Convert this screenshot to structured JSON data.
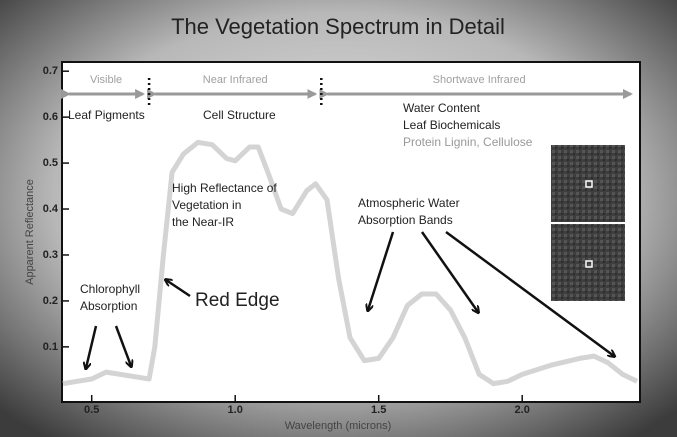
{
  "chart_data": {
    "type": "line",
    "title": "The Vegetation Spectrum in Detail",
    "x_label": "Wavelength (microns)",
    "y_label": "Apparent Reflectance",
    "x": [
      0.4,
      0.45,
      0.5,
      0.55,
      0.6,
      0.65,
      0.7,
      0.72,
      0.75,
      0.78,
      0.82,
      0.87,
      0.92,
      0.97,
      1.0,
      1.05,
      1.08,
      1.12,
      1.16,
      1.2,
      1.25,
      1.28,
      1.32,
      1.36,
      1.4,
      1.45,
      1.5,
      1.55,
      1.6,
      1.65,
      1.7,
      1.75,
      1.8,
      1.85,
      1.9,
      1.95,
      2.0,
      2.1,
      2.2,
      2.25,
      2.3,
      2.35,
      2.4
    ],
    "values": [
      0.02,
      0.025,
      0.03,
      0.045,
      0.04,
      0.035,
      0.03,
      0.1,
      0.3,
      0.48,
      0.52,
      0.545,
      0.54,
      0.51,
      0.505,
      0.535,
      0.535,
      0.47,
      0.4,
      0.39,
      0.44,
      0.455,
      0.42,
      0.25,
      0.12,
      0.07,
      0.075,
      0.12,
      0.19,
      0.215,
      0.215,
      0.18,
      0.12,
      0.04,
      0.02,
      0.025,
      0.04,
      0.06,
      0.075,
      0.08,
      0.065,
      0.04,
      0.025
    ],
    "color": "#d4d4d4",
    "xlim": [
      0.4,
      2.4
    ],
    "ylim": [
      -0.02,
      0.72
    ],
    "xticks": [
      0.5,
      {
        "value": 1,
        "label": "1.0"
      },
      1.5,
      {
        "value": 2,
        "label": "2.0"
      }
    ],
    "yticks": [
      0.1,
      0.2,
      0.3,
      0.4,
      0.5,
      0.6,
      0.7
    ],
    "regions": [
      {
        "name": "Visible",
        "start": 0.4,
        "end": 0.7
      },
      {
        "name": "Near Infrared",
        "start": 0.7,
        "end": 1.3
      },
      {
        "name": "Shortwave Infrared",
        "start": 1.3,
        "end": 2.4
      }
    ],
    "annotations": [
      [
        "Leaf Pigments"
      ],
      [
        "Cell Structure"
      ],
      [
        "Water Content",
        "Leaf Biochemicals"
      ],
      [
        "Protein Lignin, Cellulose"
      ],
      [
        "High Reflectance of",
        "Vegetation in",
        "the Near-IR"
      ],
      [
        "Chlorophyll",
        "Absorption"
      ],
      [
        "Red Edge"
      ],
      [
        "Atmospheric Water",
        "Absorption Bands"
      ]
    ]
  }
}
